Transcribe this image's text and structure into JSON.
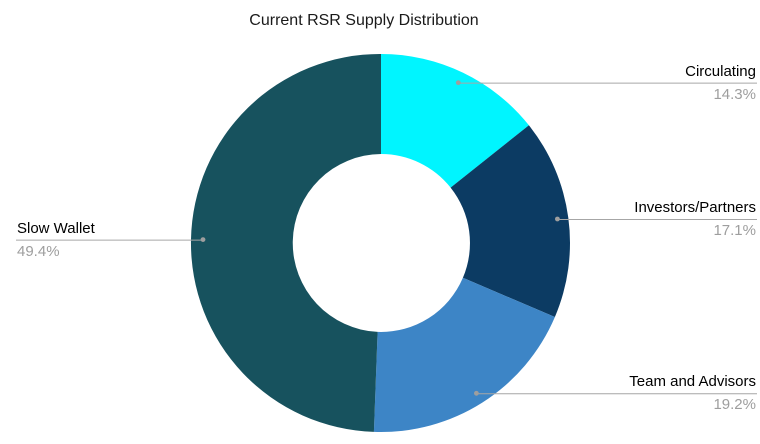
{
  "chart_data": {
    "type": "pie",
    "donut": true,
    "title": "Current RSR Supply Distribution",
    "slices": [
      {
        "label": "Circulating",
        "value": 14.3,
        "pct_label": "14.3%",
        "color": "#00F5FF"
      },
      {
        "label": "Investors/Partners",
        "value": 17.1,
        "pct_label": "17.1%",
        "color": "#0C3B63"
      },
      {
        "label": "Team and Advisors",
        "value": 19.2,
        "pct_label": "19.2%",
        "color": "#3D85C6"
      },
      {
        "label": "Slow Wallet",
        "value": 49.4,
        "pct_label": "49.4%",
        "color": "#17525E"
      }
    ],
    "start_angle_deg": 0,
    "direction": "clockwise",
    "inner_radius_ratio": 0.47,
    "legend_position": "callout-labels",
    "label_text_color": "#000000",
    "pct_text_color": "#9e9e9e",
    "leader_line_color": "#a6a6a6",
    "background": "#ffffff"
  }
}
